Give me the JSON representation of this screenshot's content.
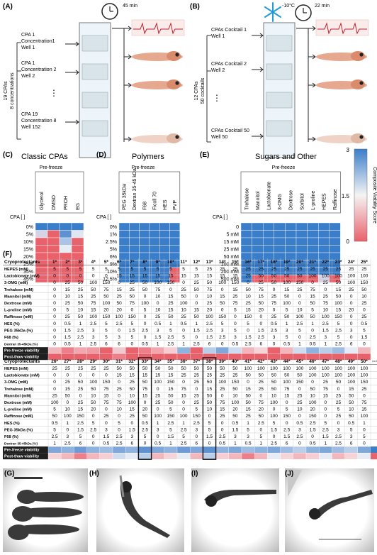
{
  "panels": {
    "A": {
      "letter": "(A)",
      "timer": "45 min",
      "side_label_1": "19 CPAs",
      "side_label_2": "8 concentrations",
      "rows": [
        [
          "CPA 1",
          "Concentration1",
          "Well 1"
        ],
        [
          "CPA 1",
          "Concentration 2",
          "Well 2"
        ],
        [
          "CPA 19",
          "Concentration 8",
          "Well 152"
        ]
      ],
      "ellipsis": "⋮"
    },
    "B": {
      "letter": "(B)",
      "temp": "-10°C",
      "timer": "22 min",
      "side_label_1": "12 CPAs",
      "side_label_2": "50 cocktails",
      "rows": [
        [
          "CPAs Cocktail 1",
          "Well 1"
        ],
        [
          "CPAs Cocktail 2",
          "Well 2"
        ],
        [
          "CPAs Cocktail 50",
          "Well 50"
        ]
      ],
      "ellipsis": "⋮"
    },
    "C": {
      "letter": "(C)",
      "title": "Classic CPAs",
      "subtitle": "Pre-freeze",
      "axis_label": "CPA [ ]",
      "columns": [
        "Glycerol",
        "DMSO",
        "PROH",
        "EG"
      ],
      "rows": [
        "0%",
        "5%",
        "10%",
        "15%",
        "20%",
        "25%",
        "35%",
        "45%"
      ]
    },
    "D": {
      "letter": "(D)",
      "title": "Polymers",
      "subtitle": "Pre-freeze",
      "axis_label": "CPA [ ]",
      "columns": [
        "PEG 35kDa",
        "Dextran 35-45 kDa",
        "F68",
        "Ficoll 70",
        "HES",
        "PVP"
      ],
      "rows": [
        "0%",
        "1%",
        "2.5%",
        "5%",
        "6%",
        "9%",
        "10%",
        "12.5%"
      ]
    },
    "E": {
      "letter": "(E)",
      "title": "Sugars and Other",
      "subtitle": "Pre-freeze",
      "axis_label": "CPA [ ]",
      "columns": [
        "Trehalose",
        "Mannitol",
        "Lactobionate",
        "3-OMG",
        "Dextrose",
        "Sorbitol",
        "L-proline",
        "HEPES",
        "Raffinose"
      ],
      "rows": [
        "0",
        "5 mM",
        "15 mM",
        "25 mM",
        "50 mM",
        "100 mM",
        "200 mM",
        "500 mM"
      ]
    },
    "colorbar": {
      "label": "Composite Viability Score",
      "ticks": [
        "3",
        "1.5",
        "0"
      ],
      "high_color": "#3a7dc9",
      "mid_color": "#f4f4f4",
      "low_color": "#e9616b"
    },
    "F": {
      "letter": "(F)",
      "header_label": "Cryoprotectants",
      "row_labels": [
        "HEPES (mM)",
        "Lactobionate (mM)",
        "3-OMG (mM)",
        "Trehalose (mM)",
        "Mannitol (mM)",
        "Dextrose (mM)",
        "L-proline (mM)",
        "Raffinose (mM)",
        "HES (%)",
        "PEG 35kDa (%)",
        "F68 (%)",
        "Dextran 35-45kDa (%)"
      ],
      "viability_labels": [
        "Pre-freeze viability",
        "Post-thaw viability"
      ],
      "top_ids": [
        "1*",
        "2*",
        "3*",
        "4*",
        "5*",
        "6*",
        "7*",
        "8*",
        "9*",
        "10*",
        "11*",
        "12*",
        "13*",
        "14*",
        "15*",
        "16*",
        "17*",
        "18*",
        "19*",
        "20*",
        "21*",
        "22*",
        "23*",
        "24*",
        "25*"
      ],
      "top_values": [
        [
          "5",
          "5",
          "5",
          "5",
          "5",
          "5",
          "5",
          "5",
          "5",
          "5",
          "5",
          "5",
          "25",
          "25",
          "25",
          "25",
          "25",
          "25",
          "25",
          "25",
          "25",
          "25",
          "25",
          "25",
          "25"
        ],
        [
          "0",
          "0",
          "0",
          "0",
          "0",
          "15",
          "15",
          "15",
          "15",
          "15",
          "15",
          "15",
          "15",
          "15",
          "15",
          "25",
          "50",
          "50",
          "50",
          "50",
          "100",
          "100",
          "100",
          "100",
          "100"
        ],
        [
          "0",
          "25",
          "50",
          "100",
          "150",
          "0",
          "25",
          "50",
          "100",
          "150",
          "0",
          "25",
          "50",
          "100",
          "150",
          "0",
          "25",
          "50",
          "100",
          "150",
          "0",
          "25",
          "50",
          "100",
          "150"
        ],
        [
          "0",
          "15",
          "25",
          "50",
          "75",
          "15",
          "25",
          "50",
          "75",
          "0",
          "25",
          "50",
          "75",
          "0",
          "15",
          "50",
          "75",
          "0",
          "15",
          "25",
          "75",
          "0",
          "15",
          "25",
          "50"
        ],
        [
          "0",
          "10",
          "15",
          "25",
          "50",
          "25",
          "50",
          "0",
          "10",
          "15",
          "50",
          "0",
          "10",
          "15",
          "25",
          "10",
          "15",
          "25",
          "50",
          "0",
          "15",
          "25",
          "50",
          "0",
          "10"
        ],
        [
          "0",
          "25",
          "50",
          "75",
          "100",
          "50",
          "75",
          "100",
          "0",
          "25",
          "100",
          "0",
          "25",
          "50",
          "75",
          "25",
          "50",
          "75",
          "100",
          "0",
          "50",
          "75",
          "100",
          "0",
          "25"
        ],
        [
          "0",
          "5",
          "10",
          "15",
          "20",
          "20",
          "0",
          "5",
          "10",
          "15",
          "10",
          "15",
          "20",
          "0",
          "5",
          "15",
          "20",
          "0",
          "5",
          "10",
          "5",
          "10",
          "15",
          "20",
          "0"
        ],
        [
          "0",
          "25",
          "50",
          "100",
          "150",
          "100",
          "150",
          "0",
          "25",
          "50",
          "25",
          "50",
          "100",
          "150",
          "0",
          "150",
          "0",
          "25",
          "50",
          "100",
          "50",
          "100",
          "150",
          "0",
          "25"
        ],
        [
          "0",
          "0.5",
          "1",
          "2.5",
          "5",
          "2.5",
          "5",
          "0",
          "0.5",
          "1",
          "0.5",
          "1",
          "2.5",
          "5",
          "0",
          "5",
          "0",
          "0.5",
          "1",
          "2.5",
          "1",
          "2.5",
          "5",
          "0",
          "0.5"
        ],
        [
          "0",
          "1.5",
          "2.5",
          "3",
          "5",
          "0",
          "1.5",
          "2.5",
          "3",
          "5",
          "0",
          "1.5",
          "2.5",
          "3",
          "5",
          "0",
          "1.5",
          "2.5",
          "3",
          "5",
          "0",
          "1.5",
          "2.5",
          "3",
          "5"
        ],
        [
          "0",
          "1.5",
          "2.5",
          "3",
          "5",
          "3",
          "5",
          "0",
          "1.5",
          "2.5",
          "5",
          "0",
          "1.5",
          "2.5",
          "3",
          "1.5",
          "2.5",
          "3",
          "5",
          "0",
          "2.5",
          "3",
          "5",
          "0",
          "1.5"
        ],
        [
          "0",
          "0.5",
          "1",
          "2.5",
          "6",
          "6",
          "0",
          "0.5",
          "1",
          "2.5",
          "1",
          "2.5",
          "6",
          "0",
          "0.5",
          "2.5",
          "6",
          "0",
          "0.5",
          "1",
          "0.5",
          "1",
          "2.5",
          "6",
          "0"
        ]
      ],
      "top_pre_colors": [
        "#f2b6bd",
        "#ec7f8a",
        "#f2a7af",
        "#f09aa4",
        "#e9616b",
        "#f2c9cf",
        "#e9616b",
        "#ec7f8a",
        "#f2a7af",
        "#f5cdd2",
        "#8fb3df",
        "#e9616b",
        "#b9cfe9",
        "#7fa7da",
        "#cfdcef",
        "#f2b6bd",
        "#f5d4d8",
        "#e9616b",
        "#f2b6bd",
        "#cfdcef",
        "#8fb3df",
        "#b9cfe9",
        "#9fbde3",
        "#e6ecf5",
        "#f2b6bd"
      ],
      "top_post_colors": [
        "#e9616b",
        "#e9616b",
        "#e9616b",
        "#e9616b",
        "#e9616b",
        "#ec7f8a",
        "#e9616b",
        "#e9616b",
        "#e9616b",
        "#e9616b",
        "#e9616b",
        "#e9616b",
        "#e9616b",
        "#e9616b",
        "#e9616b",
        "#e9616b",
        "#e9616b",
        "#e9616b",
        "#e9616b",
        "#e9616b",
        "#e9616b",
        "#e9616b",
        "#e9616b",
        "#e9616b",
        "#e9616b"
      ],
      "bottom_ids": [
        "26*",
        "27*",
        "28*",
        "29*",
        "30*",
        "31*",
        "32*",
        "33*",
        "34*",
        "35*",
        "36*",
        "37*",
        "38*",
        "39*",
        "40*",
        "41*",
        "42*",
        "43*",
        "44*",
        "45*",
        "46*",
        "47*",
        "48*",
        "49*",
        "50*"
      ],
      "bottom_extra_label": "no CPA",
      "bottom_values": [
        [
          "25",
          "25",
          "25",
          "25",
          "25",
          "50",
          "50",
          "50",
          "50",
          "50",
          "50",
          "50",
          "50",
          "50",
          "50",
          "100",
          "100",
          "100",
          "100",
          "100",
          "100",
          "100",
          "100",
          "100",
          "100"
        ],
        [
          "0",
          "0",
          "0",
          "0",
          "0",
          "15",
          "15",
          "15",
          "15",
          "15",
          "25",
          "25",
          "25",
          "25",
          "25",
          "50",
          "50",
          "50",
          "50",
          "50",
          "100",
          "100",
          "100",
          "100",
          "100"
        ],
        [
          "0",
          "25",
          "50",
          "100",
          "150",
          "0",
          "25",
          "50",
          "100",
          "150",
          "0",
          "25",
          "50",
          "100",
          "150",
          "0",
          "25",
          "50",
          "100",
          "150",
          "0",
          "25",
          "50",
          "100",
          "150"
        ],
        [
          "0",
          "15",
          "25",
          "50",
          "75",
          "25",
          "50",
          "75",
          "0",
          "15",
          "75",
          "0",
          "15",
          "25",
          "50",
          "15",
          "25",
          "50",
          "75",
          "0",
          "50",
          "75",
          "0",
          "15",
          "25"
        ],
        [
          "25",
          "50",
          "0",
          "10",
          "15",
          "0",
          "10",
          "15",
          "25",
          "50",
          "15",
          "25",
          "50",
          "0",
          "10",
          "50",
          "0",
          "10",
          "15",
          "25",
          "10",
          "15",
          "25",
          "50",
          "0"
        ],
        [
          "100",
          "0",
          "25",
          "50",
          "75",
          "75",
          "100",
          "0",
          "25",
          "50",
          "0",
          "25",
          "50",
          "75",
          "100",
          "50",
          "75",
          "100",
          "0",
          "25",
          "100",
          "0",
          "25",
          "50",
          "75"
        ],
        [
          "5",
          "10",
          "15",
          "20",
          "0",
          "10",
          "15",
          "20",
          "0",
          "5",
          "0",
          "5",
          "10",
          "15",
          "20",
          "15",
          "20",
          "0",
          "5",
          "10",
          "20",
          "0",
          "5",
          "10",
          "15"
        ],
        [
          "50",
          "100",
          "150",
          "0",
          "25",
          "0",
          "25",
          "50",
          "100",
          "150",
          "100",
          "150",
          "0",
          "25",
          "50",
          "25",
          "50",
          "100",
          "150",
          "0",
          "150",
          "0",
          "25",
          "50",
          "100"
        ],
        [
          "0.5",
          "1",
          "2.5",
          "5",
          "0",
          "5",
          "0",
          "0.5",
          "1",
          "2.5",
          "1",
          "2.5",
          "5",
          "0",
          "0.5",
          "1",
          "2.5",
          "5",
          "0",
          "0.5",
          "2.5",
          "5",
          "0",
          "0.5",
          "1"
        ],
        [
          "5",
          "0",
          "1.5",
          "2.5",
          "3",
          "0",
          "1.5",
          "2.5",
          "3",
          "5",
          "2.5",
          "3",
          "5",
          "0",
          "1.5",
          "5",
          "0",
          "1.5",
          "2.5",
          "3",
          "1.5",
          "2.5",
          "3",
          "5",
          "0"
        ],
        [
          "2.5",
          "3",
          "5",
          "0",
          "1.5",
          "2.5",
          "3",
          "5",
          "0",
          "1.5",
          "5",
          "0",
          "1.5",
          "2.5",
          "3",
          "3",
          "5",
          "0",
          "1.5",
          "2.5",
          "0",
          "1.5",
          "2.5",
          "3",
          "5"
        ],
        [
          "1",
          "2.5",
          "6",
          "0",
          "0.5",
          "2.5",
          "6",
          "0",
          "0.5",
          "1",
          "2.5",
          "6",
          "0",
          "0.5",
          "1",
          "0.5",
          "1",
          "2.5",
          "6",
          "0",
          "0.5",
          "1",
          "2.5",
          "6",
          "0"
        ]
      ],
      "bottom_pre_colors": [
        "#7fa7da",
        "#8fb3df",
        "#6e9bd5",
        "#8fb3df",
        "#9fbde3",
        "#7fa7da",
        "#8fb3df",
        "#5f91d1",
        "#7fa7da",
        "#8fb3df",
        "#6e9bd5",
        "#7fa7da",
        "#5f91d1",
        "#8fb3df",
        "#7fa7da",
        "#9fbde3",
        "#8fb3df",
        "#7fa7da",
        "#9fbde3",
        "#b9cfe9",
        "#8fb3df",
        "#7fa7da",
        "#9fbde3",
        "#b9cfe9",
        "#7fa7da"
      ],
      "bottom_post_colors": [
        "#f5d4d8",
        "#f2b6bd",
        "#ec7f8a",
        "#f2b6bd",
        "#f5cdd2",
        "#cfdcef",
        "#e6ecf5",
        "#b9cfe9",
        "#f2b6bd",
        "#f5d4d8",
        "#e6ecf5",
        "#f2b6bd",
        "#b9cfe9",
        "#f5cdd2",
        "#f2b6bd",
        "#ec7f8a",
        "#f2b6bd",
        "#e6ecf5",
        "#f5d4d8",
        "#f2b6bd",
        "#f5cdd2",
        "#e6ecf5",
        "#f2b6bd",
        "#f5d4d8",
        "#e6ecf5"
      ],
      "bottom_extra_pre_color": "#3a7dc9",
      "bottom_extra_post_color": "#e9616b",
      "highlighted_ids": [
        "33*",
        "38*"
      ]
    },
    "G": {
      "letter": "(G)"
    },
    "H": {
      "letter": "(H)"
    },
    "I": {
      "letter": "(I)"
    },
    "J": {
      "letter": "(J)"
    }
  },
  "heatmaps": {
    "C": [
      [
        "#3a7dc9",
        "#3a7dc9",
        "#3a7dc9",
        "#3a7dc9"
      ],
      [
        "#d6d3e6",
        "#e9616b",
        "#5f91d1",
        "#dfe6f2"
      ],
      [
        "#e9616b",
        "#e9616b",
        "#a9c4e6",
        "#e9616b"
      ],
      [
        "#e9616b",
        "#e9616b",
        "#e6ecf5",
        "#e9616b"
      ],
      [
        "#e9616b",
        "#e9616b",
        "#e9616b",
        "#e9616b"
      ],
      [
        "#e9616b",
        "#e9616b",
        "#e9616b",
        "#e9616b"
      ],
      [
        "#e9616b",
        "#e9616b",
        "#e9616b",
        "#e9616b"
      ],
      [
        "#e9616b",
        "#e9616b",
        "#e9616b",
        "#e9616b"
      ]
    ],
    "D": [
      [
        "#3a7dc9",
        "#3a7dc9",
        "#3a7dc9",
        "#3a7dc9",
        "#3a7dc9",
        "#3a7dc9"
      ],
      [
        "#3a7dc9",
        "#3a7dc9",
        "#3a7dc9",
        "#3a7dc9",
        "#3a7dc9",
        "#3a7dc9"
      ],
      [
        "#3a7dc9",
        "#3a7dc9",
        "#3a7dc9",
        "#3a7dc9",
        "#3a7dc9",
        "#3a7dc9"
      ],
      [
        "#3a7dc9",
        "#3a7dc9",
        "#3a7dc9",
        "#3a7dc9",
        "#3a7dc9",
        "#3a7dc9"
      ],
      [
        "#3a7dc9",
        "#3a7dc9",
        "#3a7dc9",
        "#3a7dc9",
        "#3a7dc9",
        "#3a7dc9"
      ],
      [
        "#3a7dc9",
        "#3a7dc9",
        "#3a7dc9",
        "#3a7dc9",
        "#3a7dc9",
        "#3a7dc9"
      ],
      [
        "#3a7dc9",
        "#3a7dc9",
        "#3a7dc9",
        "#3a7dc9",
        "#3a7dc9",
        "#e9616b"
      ],
      [
        "#3a7dc9",
        "#3a7dc9",
        "#3a7dc9",
        "#3a7dc9",
        "#3a7dc9",
        "#e9616b"
      ]
    ],
    "E": [
      [
        "#3a7dc9",
        "#3a7dc9",
        "#3a7dc9",
        "#3a7dc9",
        "#3a7dc9",
        "#3a7dc9",
        "#3a7dc9",
        "#3a7dc9",
        "#3a7dc9"
      ],
      [
        "#3a7dc9",
        "#3a7dc9",
        "#3a7dc9",
        "#3a7dc9",
        "#3a7dc9",
        "#3a7dc9",
        "#3a7dc9",
        "#3a7dc9",
        "#3a7dc9"
      ],
      [
        "#3a7dc9",
        "#3a7dc9",
        "#3a7dc9",
        "#3a7dc9",
        "#3a7dc9",
        "#3a7dc9",
        "#3a7dc9",
        "#3a7dc9",
        "#3a7dc9"
      ],
      [
        "#3a7dc9",
        "#3a7dc9",
        "#3a7dc9",
        "#3a7dc9",
        "#3a7dc9",
        "#3a7dc9",
        "#3a7dc9",
        "#3a7dc9",
        "#3a7dc9"
      ],
      [
        "#3a7dc9",
        "#3a7dc9",
        "#3a7dc9",
        "#3a7dc9",
        "#3a7dc9",
        "#3a7dc9",
        "#3a7dc9",
        "#3a7dc9",
        "#3a7dc9"
      ],
      [
        "#3a7dc9",
        "#3a7dc9",
        "#3a7dc9",
        "#3a7dc9",
        "#3a7dc9",
        "#3a7dc9",
        "#3a7dc9",
        "#3a7dc9",
        "#3a7dc9"
      ],
      [
        "#3a7dc9",
        "#3a7dc9",
        "#3a7dc9",
        "#3a7dc9",
        "#3a7dc9",
        "#3a7dc9",
        "#3a7dc9",
        "#3a7dc9",
        "#3a7dc9"
      ],
      [
        "#3a7dc9",
        "#e9616b",
        "#e9616b",
        "#e9616b",
        "#e9616b",
        "#e9616b",
        "#e9616b",
        "#d6d3e6",
        "#e9616b"
      ]
    ]
  }
}
